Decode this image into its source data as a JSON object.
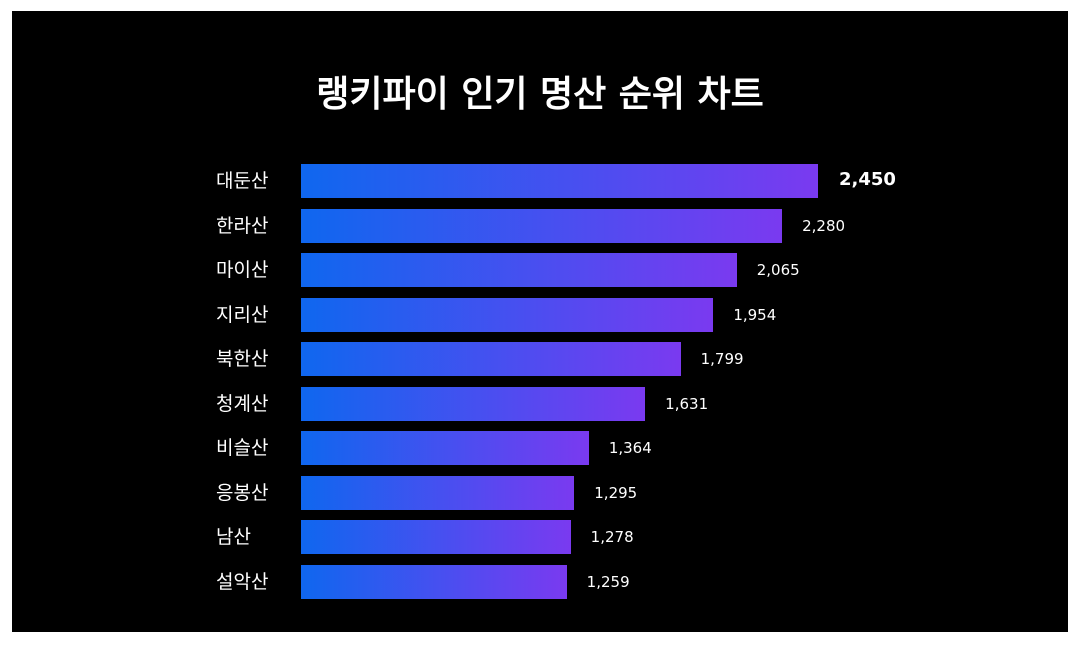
{
  "chart_data": {
    "type": "bar",
    "orientation": "horizontal",
    "title": "랭키파이 인기 명산 순위 차트",
    "categories": [
      "대둔산",
      "한라산",
      "마이산",
      "지리산",
      "북한산",
      "청계산",
      "비슬산",
      "응봉산",
      "남산",
      "설악산"
    ],
    "values": [
      2450,
      2280,
      2065,
      1954,
      1799,
      1631,
      1364,
      1295,
      1278,
      1259
    ],
    "value_labels": [
      "2,450",
      "2,280",
      "2,065",
      "1,954",
      "1,799",
      "1,631",
      "1,364",
      "1,295",
      "1,278",
      "1,259"
    ],
    "xlim": [
      0,
      2450
    ],
    "grid": false,
    "colors": {
      "background": "#000000",
      "bar_gradient_start": "#0f67ef",
      "bar_gradient_end": "#7a3af0",
      "text": "#ffffff"
    }
  }
}
